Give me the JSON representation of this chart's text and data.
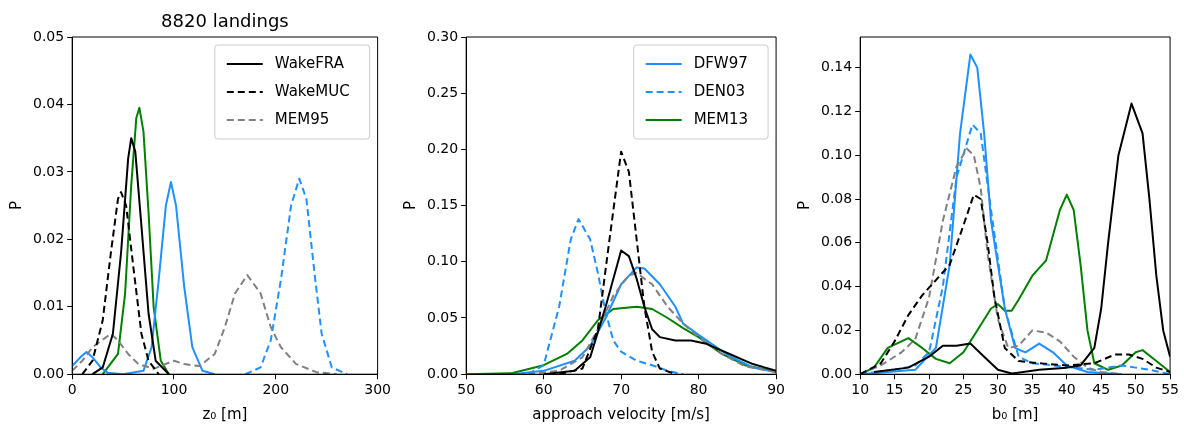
{
  "chart_data": [
    {
      "type": "line",
      "title": "8820 landings",
      "xlabel": "z₀ [m]",
      "ylabel": "P",
      "xlim": [
        0,
        300
      ],
      "xticks": [
        0,
        100,
        200,
        300
      ],
      "ylim": [
        0,
        0.05
      ],
      "yticks": [
        {
          "value": 0,
          "label": "0.00"
        },
        {
          "value": 0.01,
          "label": "0.01"
        },
        {
          "value": 0.02,
          "label": "0.02"
        },
        {
          "value": 0.03,
          "label": "0.03"
        },
        {
          "value": 0.04,
          "label": "0.04"
        },
        {
          "value": 0.05,
          "label": "0.05"
        }
      ],
      "legend": "top right",
      "series": [
        {
          "name": "WakeFRA",
          "color": "#000000",
          "line_style": "solid",
          "x": [
            20,
            30,
            40,
            48,
            55,
            58,
            62,
            68,
            75,
            82,
            95
          ],
          "values": [
            0,
            0.001,
            0.006,
            0.018,
            0.032,
            0.035,
            0.033,
            0.022,
            0.009,
            0.002,
            0
          ]
        },
        {
          "name": "WakeMUC",
          "color": "#000000",
          "line_style": "dashed",
          "x": [
            10,
            20,
            30,
            38,
            45,
            48,
            53,
            60,
            68,
            75,
            85
          ],
          "values": [
            0,
            0.002,
            0.008,
            0.018,
            0.026,
            0.027,
            0.025,
            0.016,
            0.006,
            0.002,
            0
          ]
        },
        {
          "name": "MEM95",
          "color": "#808080",
          "line_style": "dashed",
          "x": [
            0,
            10,
            20,
            38,
            45,
            55,
            65,
            80,
            100,
            110,
            125,
            140,
            150,
            160,
            172,
            185,
            195,
            205,
            220,
            240,
            260
          ],
          "values": [
            0.0005,
            0.002,
            0.004,
            0.006,
            0.005,
            0.003,
            0.0015,
            0.0008,
            0.002,
            0.0015,
            0.0012,
            0.003,
            0.007,
            0.012,
            0.0147,
            0.012,
            0.007,
            0.004,
            0.0015,
            0.0003,
            0
          ]
        },
        {
          "color": "#1e90ff",
          "line_style": "solid",
          "x": [
            0,
            8,
            14,
            20,
            28,
            35,
            50,
            70,
            78,
            85,
            92,
            97,
            102,
            110,
            118,
            128,
            140
          ],
          "values": [
            0.0012,
            0.0025,
            0.0033,
            0.0025,
            0.001,
            0.0002,
            0,
            0.0005,
            0.004,
            0.014,
            0.025,
            0.0285,
            0.025,
            0.013,
            0.004,
            0.0005,
            0
          ]
        },
        {
          "color": "#1e90ff",
          "line_style": "dashed",
          "x": [
            170,
            185,
            195,
            205,
            215,
            223,
            230,
            238,
            245,
            255,
            270
          ],
          "values": [
            0,
            0.001,
            0.005,
            0.014,
            0.025,
            0.029,
            0.026,
            0.015,
            0.006,
            0.001,
            0
          ]
        },
        {
          "color": "#008000",
          "line_style": "solid",
          "x": [
            30,
            45,
            52,
            58,
            63,
            66,
            70,
            75,
            80,
            87,
            95
          ],
          "values": [
            0,
            0.003,
            0.012,
            0.028,
            0.038,
            0.0395,
            0.036,
            0.024,
            0.01,
            0.002,
            0
          ]
        }
      ]
    },
    {
      "type": "line",
      "xlabel": "approach velocity [m/s]",
      "ylabel": "P",
      "xlim": [
        50,
        90
      ],
      "xticks": [
        50,
        60,
        70,
        80,
        90
      ],
      "ylim": [
        0,
        0.3
      ],
      "yticks": [
        {
          "value": 0,
          "label": "0.00"
        },
        {
          "value": 0.05,
          "label": "0.05"
        },
        {
          "value": 0.1,
          "label": "0.10"
        },
        {
          "value": 0.15,
          "label": "0.15"
        },
        {
          "value": 0.2,
          "label": "0.20"
        },
        {
          "value": 0.25,
          "label": "0.25"
        },
        {
          "value": 0.3,
          "label": "0.30"
        }
      ],
      "legend": "top right",
      "series": [
        {
          "color": "#000000",
          "line_style": "solid",
          "x": [
            60,
            64,
            66,
            68,
            70,
            71,
            72,
            73,
            74,
            75,
            77,
            79,
            81,
            84,
            87,
            90
          ],
          "values": [
            0,
            0.003,
            0.015,
            0.06,
            0.11,
            0.105,
            0.085,
            0.06,
            0.04,
            0.033,
            0.03,
            0.03,
            0.027,
            0.018,
            0.009,
            0.003
          ]
        },
        {
          "color": "#000000",
          "line_style": "dashed",
          "x": [
            62,
            65,
            67,
            68.5,
            70,
            71,
            72,
            73,
            74,
            75,
            77
          ],
          "values": [
            0,
            0.005,
            0.04,
            0.12,
            0.198,
            0.18,
            0.12,
            0.06,
            0.02,
            0.005,
            0
          ]
        },
        {
          "color": "#808080",
          "line_style": "dashed",
          "x": [
            58,
            62,
            65,
            67,
            69,
            71,
            72,
            74,
            76,
            78,
            80,
            83,
            86,
            90
          ],
          "values": [
            0,
            0.003,
            0.015,
            0.04,
            0.07,
            0.088,
            0.09,
            0.08,
            0.06,
            0.045,
            0.033,
            0.018,
            0.007,
            0.002
          ]
        },
        {
          "name": "DFW97",
          "color": "#1e90ff",
          "line_style": "solid",
          "x": [
            56,
            60,
            64,
            66,
            68,
            70,
            72,
            73,
            75,
            77,
            78,
            80,
            84,
            87,
            90
          ],
          "values": [
            0,
            0.003,
            0.012,
            0.025,
            0.05,
            0.08,
            0.095,
            0.094,
            0.08,
            0.06,
            0.045,
            0.035,
            0.016,
            0.006,
            0.002
          ]
        },
        {
          "name": "DEN03",
          "color": "#1e90ff",
          "line_style": "dashed",
          "x": [
            58,
            60,
            62,
            63.5,
            64.5,
            66,
            67,
            68,
            69,
            70,
            72,
            74,
            76,
            78
          ],
          "values": [
            0,
            0.008,
            0.06,
            0.12,
            0.138,
            0.12,
            0.09,
            0.055,
            0.03,
            0.02,
            0.012,
            0.008,
            0.003,
            0
          ]
        },
        {
          "name": "MEM13",
          "color": "#008000",
          "line_style": "solid",
          "x": [
            50,
            56,
            60,
            63,
            65,
            67,
            69,
            72,
            74,
            76,
            78,
            80,
            83,
            86,
            90
          ],
          "values": [
            0,
            0.001,
            0.008,
            0.018,
            0.03,
            0.048,
            0.058,
            0.06,
            0.058,
            0.05,
            0.041,
            0.033,
            0.018,
            0.008,
            0.002
          ]
        }
      ]
    },
    {
      "type": "line",
      "xlabel": "b₀ [m]",
      "ylabel": "P",
      "xlim": [
        10,
        55
      ],
      "xticks": [
        10,
        15,
        20,
        25,
        30,
        35,
        40,
        45,
        50,
        55
      ],
      "ylim": [
        0,
        0.154
      ],
      "yticks": [
        {
          "value": 0,
          "label": "0.00"
        },
        {
          "value": 0.02,
          "label": "0.02"
        },
        {
          "value": 0.04,
          "label": "0.04"
        },
        {
          "value": 0.06,
          "label": "0.06"
        },
        {
          "value": 0.08,
          "label": "0.08"
        },
        {
          "value": 0.1,
          "label": "0.10"
        },
        {
          "value": 0.12,
          "label": "0.12"
        },
        {
          "value": 0.14,
          "label": "0.14"
        }
      ],
      "series": [
        {
          "color": "#000000",
          "line_style": "solid",
          "x": [
            12,
            17,
            20,
            22,
            24,
            26,
            28,
            30,
            32,
            36,
            40,
            42,
            44,
            45,
            46,
            47.5,
            49.4,
            51,
            52,
            53,
            54,
            55
          ],
          "values": [
            0.001,
            0.003,
            0.008,
            0.013,
            0.013,
            0.014,
            0.008,
            0.002,
            0.0003,
            0.002,
            0.003,
            0.004,
            0.012,
            0.03,
            0.06,
            0.1,
            0.1236,
            0.11,
            0.08,
            0.045,
            0.02,
            0.008
          ]
        },
        {
          "color": "#000000",
          "line_style": "dashed",
          "x": [
            10,
            13,
            15,
            17,
            19,
            21,
            23,
            25,
            26.5,
            27.5,
            28.5,
            29.5,
            31,
            33,
            36,
            40,
            44,
            47,
            49,
            51,
            53,
            55
          ],
          "values": [
            0,
            0.005,
            0.015,
            0.027,
            0.036,
            0.043,
            0.05,
            0.068,
            0.082,
            0.08,
            0.06,
            0.035,
            0.012,
            0.006,
            0.005,
            0.004,
            0.005,
            0.009,
            0.009,
            0.007,
            0.003,
            0.001
          ]
        },
        {
          "color": "#808080",
          "line_style": "dashed",
          "x": [
            10,
            13,
            16,
            18,
            20,
            22,
            24,
            25.5,
            26.5,
            27.5,
            28.5,
            30,
            31.5,
            33,
            35,
            37,
            39,
            41,
            43,
            45,
            48
          ],
          "values": [
            0,
            0.004,
            0.01,
            0.016,
            0.035,
            0.07,
            0.095,
            0.103,
            0.1,
            0.085,
            0.055,
            0.025,
            0.012,
            0.013,
            0.02,
            0.019,
            0.015,
            0.008,
            0.003,
            0.001,
            0
          ]
        },
        {
          "color": "#1e90ff",
          "line_style": "solid",
          "x": [
            10,
            18,
            21,
            23,
            24.5,
            26,
            27,
            28,
            29,
            31,
            32.5,
            34,
            36,
            38,
            40,
            43,
            48
          ],
          "values": [
            0,
            0.002,
            0.012,
            0.05,
            0.11,
            0.146,
            0.14,
            0.11,
            0.07,
            0.03,
            0.012,
            0.01,
            0.014,
            0.01,
            0.004,
            0.001,
            0
          ]
        },
        {
          "color": "#1e90ff",
          "line_style": "dashed",
          "x": [
            10,
            15,
            18,
            20,
            22,
            24,
            26.3,
            27.5,
            29,
            31,
            33,
            35,
            38,
            41,
            44,
            48,
            50,
            52,
            55
          ],
          "values": [
            0,
            0.002,
            0.004,
            0.01,
            0.04,
            0.09,
            0.114,
            0.11,
            0.075,
            0.03,
            0.008,
            0.005,
            0.004,
            0.003,
            0.002,
            0.004,
            0.003,
            0.002,
            0
          ]
        },
        {
          "color": "#008000",
          "line_style": "solid",
          "x": [
            10,
            12,
            14,
            17,
            19,
            21,
            23,
            25,
            27,
            29,
            30,
            31,
            32,
            33,
            35,
            37,
            39,
            40,
            41,
            42,
            43,
            44,
            46,
            48,
            50,
            51,
            53,
            55
          ],
          "values": [
            0,
            0.003,
            0.012,
            0.0165,
            0.012,
            0.007,
            0.005,
            0.01,
            0.02,
            0.03,
            0.032,
            0.029,
            0.029,
            0.034,
            0.045,
            0.052,
            0.075,
            0.082,
            0.075,
            0.05,
            0.02,
            0.005,
            0.002,
            0.004,
            0.01,
            0.011,
            0.006,
            0.001
          ]
        }
      ]
    }
  ]
}
